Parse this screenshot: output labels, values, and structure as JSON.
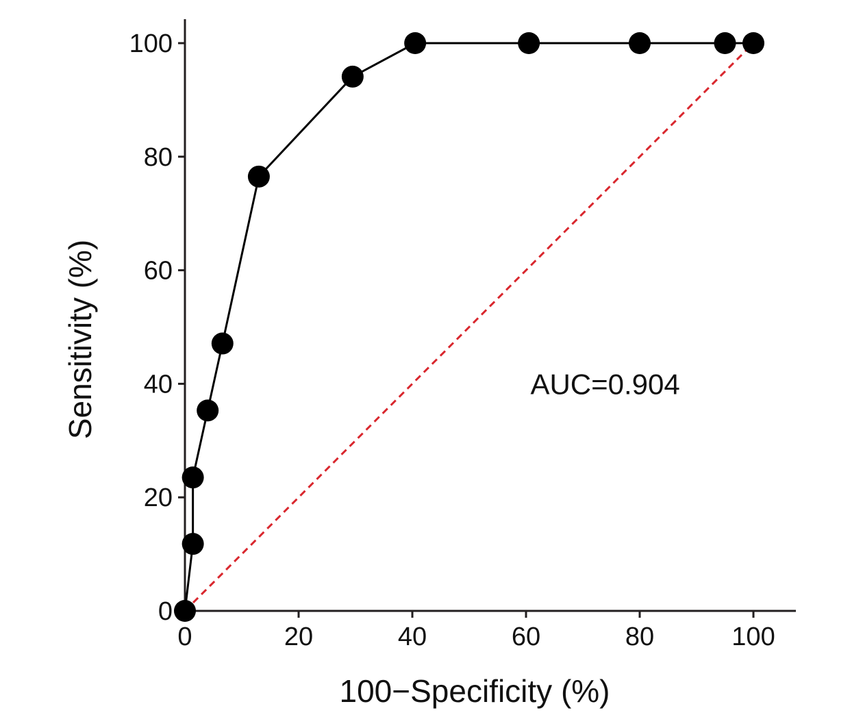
{
  "chart_data": {
    "type": "line",
    "title": "",
    "xlabel": "100−Specificity (%)",
    "ylabel": "Sensitivity (%)",
    "xlim": [
      0,
      100
    ],
    "ylim": [
      0,
      100
    ],
    "x_ticks": [
      "0",
      "20",
      "40",
      "60",
      "80",
      "100"
    ],
    "y_ticks": [
      "0",
      "20",
      "40",
      "60",
      "80",
      "100"
    ],
    "grid": false,
    "legend": "none",
    "series": [
      {
        "points": [
          {
            "x": 0,
            "y": 0
          },
          {
            "x": 1.4,
            "y": 11.8
          },
          {
            "x": 1.4,
            "y": 23.5
          },
          {
            "x": 4.0,
            "y": 35.3
          },
          {
            "x": 6.6,
            "y": 47.1
          },
          {
            "x": 13.0,
            "y": 76.5
          },
          {
            "x": 29.5,
            "y": 94.1
          },
          {
            "x": 40.5,
            "y": 100
          },
          {
            "x": 60.5,
            "y": 100
          },
          {
            "x": 80.0,
            "y": 100
          },
          {
            "x": 95.0,
            "y": 100
          },
          {
            "x": 100,
            "y": 100
          }
        ],
        "color": "#000000",
        "marker": "filled-circle"
      }
    ],
    "reference_line": {
      "from": [
        0,
        0
      ],
      "to": [
        100,
        100
      ],
      "color": "#d9272e",
      "style": "dashed"
    },
    "annotations": [
      {
        "text": "AUC=0.904",
        "x": 72,
        "y": 40
      }
    ]
  }
}
